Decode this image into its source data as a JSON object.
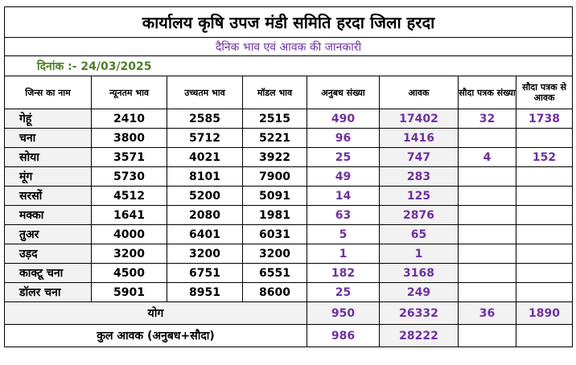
{
  "title": "कार्यालय कृषि उपज मंडी समिति हरदा जिला हरदा",
  "subtitle": "दैनिक भाव एवं आवक की जानकारी",
  "date_label": "दिनांक :- 24/03/2025",
  "headers": {
    "commodity": "जिन्स का नाम",
    "min_price": "न्यूनतम भाव",
    "max_price": "उच्चतम भाव",
    "modal_price": "मॉडल भाव",
    "contract_count": "अनुबध संख्या",
    "arrival": "आवक",
    "deal_count": "सौदा पत्रक संख्या",
    "deal_arrival": "सौदा पत्रक से आवक"
  },
  "rows": [
    {
      "name": "गेहूं",
      "min": "2410",
      "max": "2585",
      "modal": "2515",
      "contracts": "490",
      "arrival": "17402",
      "deals": "32",
      "deal_arrival": "1738"
    },
    {
      "name": "चना",
      "min": "3800",
      "max": "5712",
      "modal": "5221",
      "contracts": "96",
      "arrival": "1416",
      "deals": "",
      "deal_arrival": ""
    },
    {
      "name": "सोया",
      "min": "3571",
      "max": "4021",
      "modal": "3922",
      "contracts": "25",
      "arrival": "747",
      "deals": "4",
      "deal_arrival": "152"
    },
    {
      "name": "मूंग",
      "min": "5730",
      "max": "8101",
      "modal": "7900",
      "contracts": "49",
      "arrival": "283",
      "deals": "",
      "deal_arrival": ""
    },
    {
      "name": "सरसों",
      "min": "4512",
      "max": "5200",
      "modal": "5091",
      "contracts": "14",
      "arrival": "125",
      "deals": "",
      "deal_arrival": ""
    },
    {
      "name": "मक्का",
      "min": "1641",
      "max": "2080",
      "modal": "1981",
      "contracts": "63",
      "arrival": "2876",
      "deals": "",
      "deal_arrival": ""
    },
    {
      "name": "तुअर",
      "min": "4000",
      "max": "6401",
      "modal": "6031",
      "contracts": "5",
      "arrival": "65",
      "deals": "",
      "deal_arrival": ""
    },
    {
      "name": "उड़द",
      "min": "3200",
      "max": "3200",
      "modal": "3200",
      "contracts": "1",
      "arrival": "1",
      "deals": "",
      "deal_arrival": ""
    },
    {
      "name": "काक्टू चना",
      "min": "4500",
      "max": "6751",
      "modal": "6551",
      "contracts": "182",
      "arrival": "3168",
      "deals": "",
      "deal_arrival": ""
    },
    {
      "name": "डॉलर चना",
      "min": "5901",
      "max": "8951",
      "modal": "8600",
      "contracts": "25",
      "arrival": "249",
      "deals": "",
      "deal_arrival": ""
    }
  ],
  "total": {
    "label": "योग",
    "contracts": "950",
    "arrival": "26332",
    "deals": "36",
    "deal_arrival": "1890"
  },
  "grand_total": {
    "label": "कुल आवक (अनुबध+सौदा)",
    "contracts": "986",
    "arrival": "28222"
  }
}
